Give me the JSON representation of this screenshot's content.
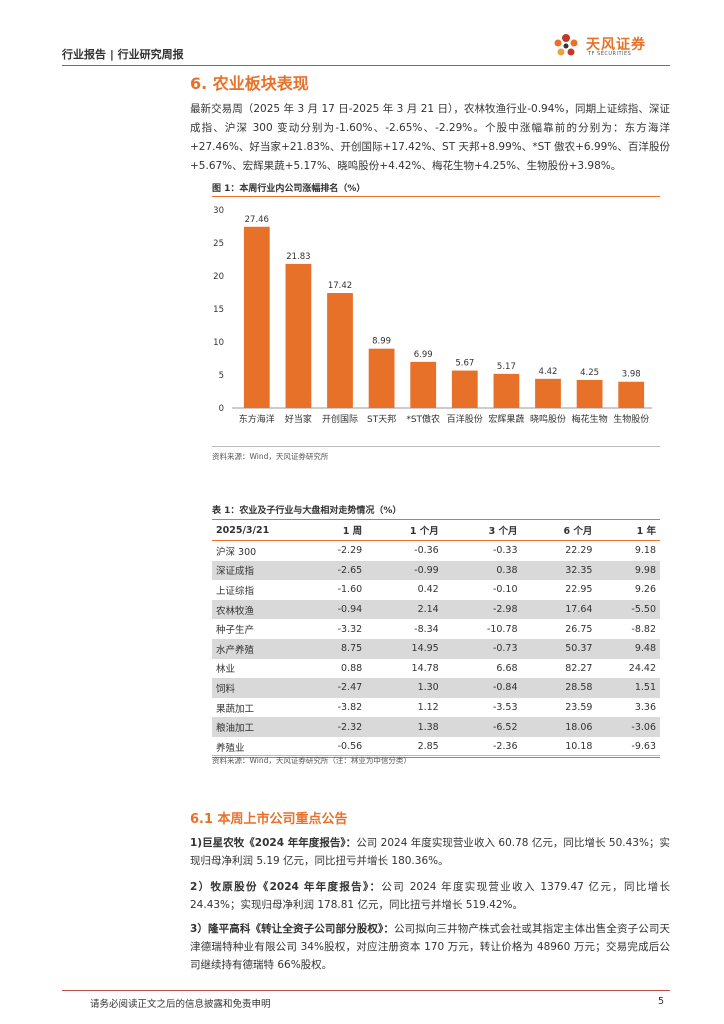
{
  "header": {
    "title": "行业报告 | 行业研究周报",
    "logo_cn": "天风证券",
    "logo_en": "TF SECURITIES"
  },
  "section": {
    "title": "6. 农业板块表现",
    "paragraph": "最新交易周（2025 年 3 月 17 日-2025 年 3 月 21 日），农林牧渔行业-0.94%，同期上证综指、深证成指、沪深 300 变动分别为-1.60%、-2.65%、-2.29%。个股中涨幅靠前的分别为：东方海洋+27.46%、好当家+21.83%、开创国际+17.42%、ST 天邦+8.99%、*ST 傲农+6.99%、百洋股份+5.67%、宏辉果蔬+5.17%、晓鸣股份+4.42%、梅花生物+4.25%、生物股份+3.98%。"
  },
  "figure": {
    "caption": "图 1：本周行业内公司涨幅排名（%）",
    "source": "资料来源：Wind，天风证券研究所"
  },
  "chart_data": {
    "type": "bar",
    "categories": [
      "东方海洋",
      "好当家",
      "开创国际",
      "ST天邦",
      "*ST傲农",
      "百洋股份",
      "宏辉果蔬",
      "晓鸣股份",
      "梅花生物",
      "生物股份"
    ],
    "values": [
      27.46,
      21.83,
      17.42,
      8.99,
      6.99,
      5.67,
      5.17,
      4.42,
      4.25,
      3.98
    ],
    "value_labels": [
      "27.46",
      "21.83",
      "17.42",
      "8.99",
      "6.99",
      "5.67",
      "5.17",
      "4.42",
      "4.25",
      "3.98"
    ],
    "yticks": [
      "0",
      "5",
      "10",
      "15",
      "20",
      "25",
      "30"
    ],
    "ylim": [
      0,
      30
    ],
    "title": "",
    "xlabel": "",
    "ylabel": "",
    "grid": false,
    "bar_color": "#e8712a"
  },
  "table": {
    "caption": "表 1：农业及子行业与大盘相对走势情况（%）",
    "headers": [
      "2025/3/21",
      "1 周",
      "1 个月",
      "3 个月",
      "6 个月",
      "1 年"
    ],
    "rows": [
      [
        "沪深 300",
        "-2.29",
        "-0.36",
        "-0.33",
        "22.29",
        "9.18"
      ],
      [
        "深证成指",
        "-2.65",
        "-0.99",
        "0.38",
        "32.35",
        "9.98"
      ],
      [
        "上证综指",
        "-1.60",
        "0.42",
        "-0.10",
        "22.95",
        "9.26"
      ],
      [
        "农林牧渔",
        "-0.94",
        "2.14",
        "-2.98",
        "17.64",
        "-5.50"
      ],
      [
        "种子生产",
        "-3.32",
        "-8.34",
        "-10.78",
        "26.75",
        "-8.82"
      ],
      [
        "水产养殖",
        "8.75",
        "14.95",
        "-0.73",
        "50.37",
        "9.48"
      ],
      [
        "林业",
        "0.88",
        "14.78",
        "6.68",
        "82.27",
        "24.42"
      ],
      [
        "饲料",
        "-2.47",
        "1.30",
        "-0.84",
        "28.58",
        "1.51"
      ],
      [
        "果蔬加工",
        "-3.82",
        "1.12",
        "-3.53",
        "23.59",
        "3.36"
      ],
      [
        "粮油加工",
        "-2.32",
        "1.38",
        "-6.52",
        "18.06",
        "-3.06"
      ],
      [
        "养殖业",
        "-0.56",
        "2.85",
        "-2.36",
        "10.18",
        "-9.63"
      ]
    ],
    "source": "资料来源：Wind，天风证券研究所（注：林业为中信分类）"
  },
  "announcements": {
    "title": "6.1 本周上市公司重点公告",
    "items": [
      {
        "head": "1)巨星农牧《2024 年年度报告》：",
        "body": "公司 2024 年度实现营业收入 60.78 亿元，同比增长 50.43%；实现归母净利润 5.19 亿元，同比扭亏并增长 180.36%。"
      },
      {
        "head": "2）牧原股份《2024 年年度报告》：",
        "body": "公司 2024 年度实现营业收入 1379.47 亿元，同比增长 24.43%；实现归母净利润 178.81 亿元，同比扭亏并增长 519.42%。"
      },
      {
        "head": "3）隆平高科《转让全资子公司部分股权》：",
        "body": "公司拟向三井物产株式会社或其指定主体出售全资子公司天津德瑞特种业有限公司 34%股权，对应注册资本 170 万元，转让价格为 48960 万元；交易完成后公司继续持有德瑞特 66%股权。"
      }
    ]
  },
  "footer": {
    "disclaimer": "请务必阅读正文之后的信息披露和免责申明",
    "page": "5"
  }
}
